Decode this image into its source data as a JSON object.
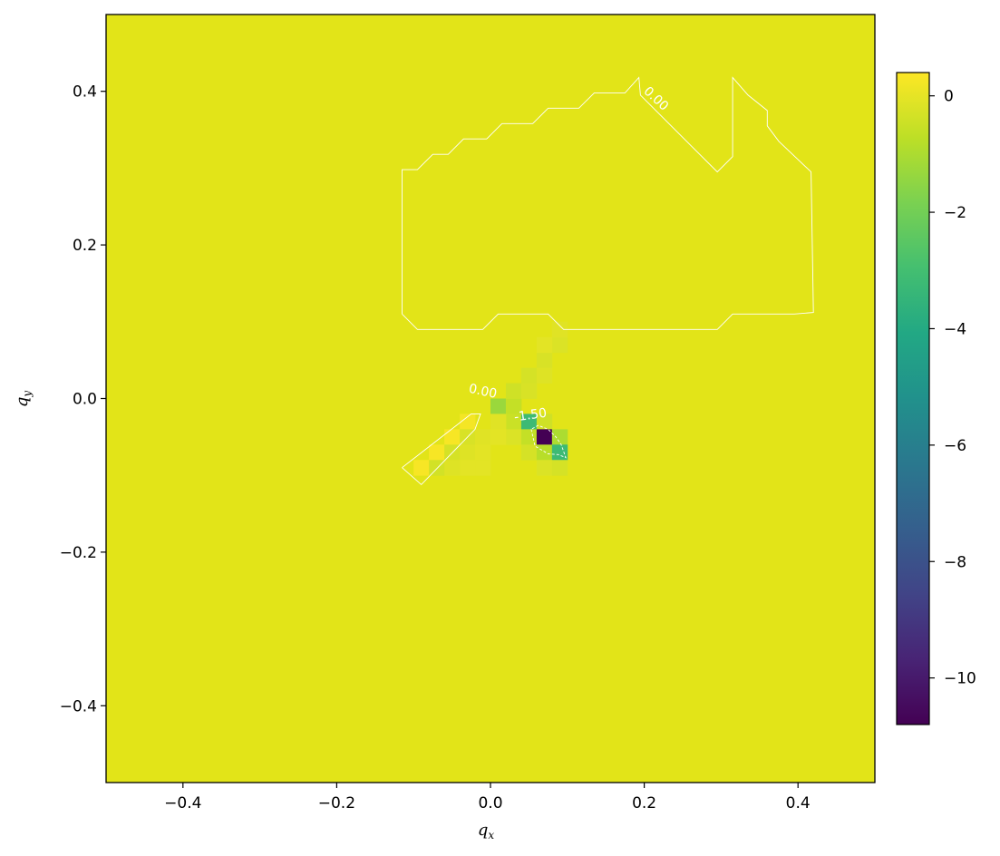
{
  "chart_data": {
    "type": "heatmap",
    "title": "",
    "xlabel": "q",
    "xlabel_sub": "x",
    "ylabel": "q",
    "ylabel_sub": "y",
    "xlim": [
      -0.5,
      0.5
    ],
    "ylim": [
      -0.5,
      0.5
    ],
    "x_ticks": [
      -0.4,
      -0.2,
      0.0,
      0.2,
      0.4
    ],
    "y_ticks": [
      -0.4,
      -0.2,
      0.0,
      0.2,
      0.4
    ],
    "x_tick_labels": [
      "−0.4",
      "−0.2",
      "0.0",
      "0.2",
      "0.4"
    ],
    "y_tick_labels": [
      "−0.4",
      "−0.2",
      "0.0",
      "0.2",
      "0.4"
    ],
    "colormap": "viridis",
    "background_value": 0.2,
    "colorbar": {
      "range": [
        -10.8,
        0.4
      ],
      "ticks": [
        0,
        -2,
        -4,
        -6,
        -8,
        -10
      ],
      "tick_labels": [
        "0",
        "−2",
        "−4",
        "−6",
        "−8",
        "−10"
      ],
      "position": "right"
    },
    "grid": false,
    "cell_size": 0.02,
    "cells": [
      {
        "x": -0.09,
        "y": -0.09,
        "v": 0.3
      },
      {
        "x": -0.07,
        "y": -0.07,
        "v": 0.3
      },
      {
        "x": -0.05,
        "y": -0.05,
        "v": 0.3
      },
      {
        "x": -0.03,
        "y": -0.03,
        "v": 0.25
      },
      {
        "x": -0.07,
        "y": -0.09,
        "v": -0.35
      },
      {
        "x": -0.05,
        "y": -0.07,
        "v": -0.3
      },
      {
        "x": -0.03,
        "y": -0.05,
        "v": -0.25
      },
      {
        "x": -0.05,
        "y": -0.09,
        "v": -0.15
      },
      {
        "x": -0.03,
        "y": -0.07,
        "v": -0.15
      },
      {
        "x": -0.01,
        "y": -0.05,
        "v": -0.1
      },
      {
        "x": -0.03,
        "y": -0.09,
        "v": -0.05
      },
      {
        "x": -0.01,
        "y": -0.07,
        "v": -0.05
      },
      {
        "x": -0.01,
        "y": -0.09,
        "v": -0.05
      },
      {
        "x": 0.01,
        "y": -0.01,
        "v": -1.3
      },
      {
        "x": 0.03,
        "y": -0.01,
        "v": -0.6
      },
      {
        "x": 0.03,
        "y": 0.01,
        "v": -0.4
      },
      {
        "x": 0.05,
        "y": 0.03,
        "v": -0.3
      },
      {
        "x": 0.05,
        "y": 0.01,
        "v": -0.25
      },
      {
        "x": 0.07,
        "y": 0.05,
        "v": -0.25
      },
      {
        "x": 0.07,
        "y": 0.03,
        "v": -0.15
      },
      {
        "x": 0.09,
        "y": 0.07,
        "v": -0.2
      },
      {
        "x": 0.09,
        "y": 0.09,
        "v": -0.1
      },
      {
        "x": 0.07,
        "y": 0.07,
        "v": -0.05
      },
      {
        "x": 0.03,
        "y": -0.03,
        "v": -0.5
      },
      {
        "x": 0.05,
        "y": -0.03,
        "v": -3.2
      },
      {
        "x": 0.07,
        "y": -0.03,
        "v": -0.4
      },
      {
        "x": 0.03,
        "y": -0.05,
        "v": -0.2
      },
      {
        "x": 0.05,
        "y": -0.05,
        "v": -0.6
      },
      {
        "x": 0.07,
        "y": -0.05,
        "v": -10.8
      },
      {
        "x": 0.09,
        "y": -0.05,
        "v": -1.0
      },
      {
        "x": 0.05,
        "y": -0.07,
        "v": -0.3
      },
      {
        "x": 0.07,
        "y": -0.07,
        "v": -0.8
      },
      {
        "x": 0.09,
        "y": -0.07,
        "v": -3.2
      },
      {
        "x": 0.07,
        "y": -0.09,
        "v": -0.2
      },
      {
        "x": 0.09,
        "y": -0.09,
        "v": -0.3
      },
      {
        "x": 0.01,
        "y": -0.03,
        "v": -0.1
      },
      {
        "x": 0.01,
        "y": -0.05,
        "v": -0.05
      }
    ],
    "contours": [
      {
        "level": "0.00",
        "style": "solid",
        "path": [
          [
            -0.115,
            0.11
          ],
          [
            -0.095,
            0.09
          ],
          [
            -0.01,
            0.09
          ],
          [
            0.01,
            0.11
          ],
          [
            0.075,
            0.11
          ],
          [
            0.095,
            0.09
          ],
          [
            0.295,
            0.09
          ],
          [
            0.315,
            0.11
          ],
          [
            0.395,
            0.11
          ],
          [
            0.42,
            0.112
          ],
          [
            0.417,
            0.295
          ],
          [
            0.375,
            0.335
          ],
          [
            0.36,
            0.355
          ],
          [
            0.36,
            0.375
          ],
          [
            0.335,
            0.395
          ],
          [
            0.315,
            0.418
          ],
          [
            0.315,
            0.315
          ],
          [
            0.295,
            0.295
          ],
          [
            0.235,
            0.355
          ],
          [
            0.195,
            0.395
          ],
          [
            0.193,
            0.418
          ],
          [
            0.175,
            0.398
          ],
          [
            0.135,
            0.398
          ],
          [
            0.115,
            0.378
          ],
          [
            0.075,
            0.378
          ],
          [
            0.055,
            0.358
          ],
          [
            0.015,
            0.358
          ],
          [
            -0.005,
            0.338
          ],
          [
            -0.035,
            0.338
          ],
          [
            -0.055,
            0.318
          ],
          [
            -0.075,
            0.318
          ],
          [
            -0.095,
            0.298
          ],
          [
            -0.115,
            0.298
          ],
          [
            -0.115,
            0.11
          ]
        ]
      },
      {
        "level": "0.00",
        "style": "solid",
        "path": [
          [
            -0.115,
            -0.09
          ],
          [
            -0.025,
            -0.02
          ],
          [
            -0.013,
            -0.02
          ],
          [
            -0.02,
            -0.04
          ],
          [
            -0.09,
            -0.112
          ],
          [
            -0.115,
            -0.09
          ]
        ]
      },
      {
        "level": "-1.50",
        "style": "dashed",
        "path": [
          [
            0.053,
            -0.04
          ],
          [
            0.058,
            -0.062
          ],
          [
            0.075,
            -0.072
          ],
          [
            0.088,
            -0.073
          ],
          [
            0.098,
            -0.077
          ],
          [
            0.092,
            -0.06
          ],
          [
            0.085,
            -0.05
          ],
          [
            0.075,
            -0.04
          ],
          [
            0.062,
            -0.035
          ],
          [
            0.053,
            -0.04
          ]
        ]
      }
    ],
    "contour_labels": [
      {
        "text": "0.00",
        "x": 0.215,
        "y": 0.39,
        "angle": 43
      },
      {
        "text": "0.00",
        "x": -0.01,
        "y": 0.009,
        "angle": 12
      },
      {
        "text": "-1.50",
        "x": 0.052,
        "y": -0.022,
        "angle": -8
      }
    ]
  }
}
